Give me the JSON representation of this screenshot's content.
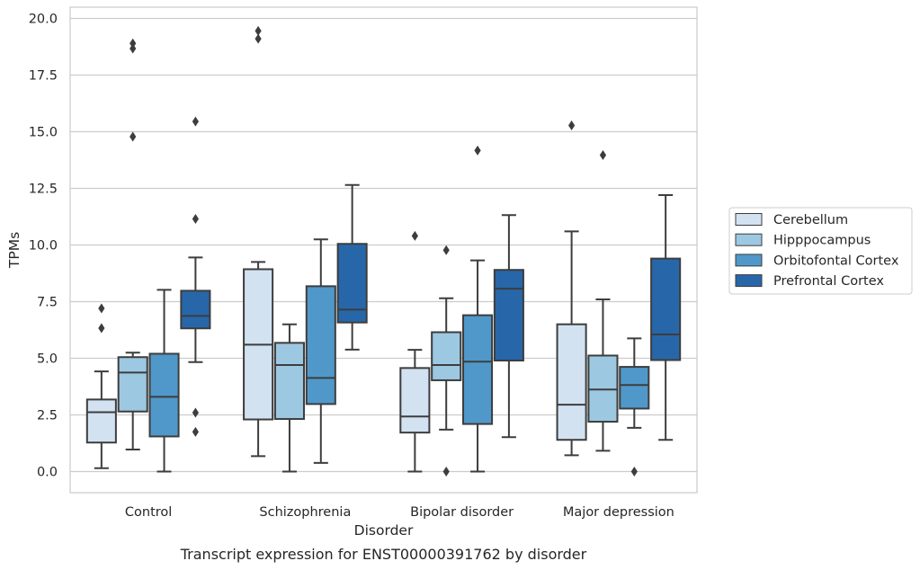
{
  "chart_data": {
    "type": "box",
    "caption": "Transcript expression for ENST00000391762 by disorder",
    "xlabel": "Disorder",
    "ylabel": "TPMs",
    "ylim": [
      -0.95,
      20.4
    ],
    "yticks": [
      "0.0",
      "2.5",
      "5.0",
      "7.5",
      "10.0",
      "12.5",
      "15.0",
      "17.5",
      "20.0"
    ],
    "categories": [
      "Control",
      "Schizophrenia",
      "Bipolar disorder",
      "Major depression"
    ],
    "grid": true,
    "legend_position": "right",
    "series": [
      {
        "name": "Cerebellum",
        "color": "#d2e2f1",
        "boxes": [
          {
            "whislo": 0.15,
            "q1": 1.28,
            "med": 2.62,
            "q3": 3.18,
            "whishi": 4.42,
            "fliers": [
              7.2,
              6.33
            ]
          },
          {
            "whislo": 0.68,
            "q1": 2.3,
            "med": 5.6,
            "q3": 8.93,
            "whishi": 9.25,
            "fliers": [
              19.45,
              19.1
            ]
          },
          {
            "whislo": 0.0,
            "q1": 1.72,
            "med": 2.43,
            "q3": 4.57,
            "whishi": 5.37,
            "fliers": [
              10.4
            ]
          },
          {
            "whislo": 0.72,
            "q1": 1.4,
            "med": 2.95,
            "q3": 6.5,
            "whishi": 10.6,
            "fliers": [
              15.28
            ]
          }
        ]
      },
      {
        "name": "Hipppocampus",
        "color": "#9dc8e1",
        "boxes": [
          {
            "whislo": 0.97,
            "q1": 2.65,
            "med": 4.37,
            "q3": 5.05,
            "whishi": 5.25,
            "fliers": [
              18.9,
              18.67,
              14.78
            ]
          },
          {
            "whislo": 0.0,
            "q1": 2.32,
            "med": 4.7,
            "q3": 5.68,
            "whishi": 6.5,
            "fliers": []
          },
          {
            "whislo": 1.85,
            "q1": 4.03,
            "med": 4.7,
            "q3": 6.15,
            "whishi": 7.65,
            "fliers": [
              9.77,
              0.0
            ]
          },
          {
            "whislo": 0.92,
            "q1": 2.2,
            "med": 3.62,
            "q3": 5.12,
            "whishi": 7.6,
            "fliers": [
              13.97
            ]
          }
        ]
      },
      {
        "name": "Orbitofontal Cortex",
        "color": "#5098c9",
        "boxes": [
          {
            "whislo": 0.0,
            "q1": 1.55,
            "med": 3.3,
            "q3": 5.2,
            "whishi": 8.02,
            "fliers": []
          },
          {
            "whislo": 0.38,
            "q1": 2.98,
            "med": 4.13,
            "q3": 8.18,
            "whishi": 10.25,
            "fliers": []
          },
          {
            "whislo": 0.0,
            "q1": 2.1,
            "med": 4.85,
            "q3": 6.9,
            "whishi": 9.32,
            "fliers": [
              14.17
            ]
          },
          {
            "whislo": 1.93,
            "q1": 2.78,
            "med": 3.82,
            "q3": 4.62,
            "whishi": 5.88,
            "fliers": [
              0.0
            ]
          }
        ]
      },
      {
        "name": "Prefrontal Cortex",
        "color": "#2767a9",
        "boxes": [
          {
            "whislo": 4.83,
            "q1": 6.32,
            "med": 6.87,
            "q3": 7.98,
            "whishi": 9.45,
            "fliers": [
              15.45,
              11.15,
              2.6,
              1.75
            ]
          },
          {
            "whislo": 5.38,
            "q1": 6.58,
            "med": 7.15,
            "q3": 10.05,
            "whishi": 12.65,
            "fliers": []
          },
          {
            "whislo": 1.52,
            "q1": 4.9,
            "med": 8.07,
            "q3": 8.9,
            "whishi": 11.32,
            "fliers": []
          },
          {
            "whislo": 1.4,
            "q1": 4.92,
            "med": 6.05,
            "q3": 9.4,
            "whishi": 12.2,
            "fliers": []
          }
        ]
      }
    ]
  }
}
